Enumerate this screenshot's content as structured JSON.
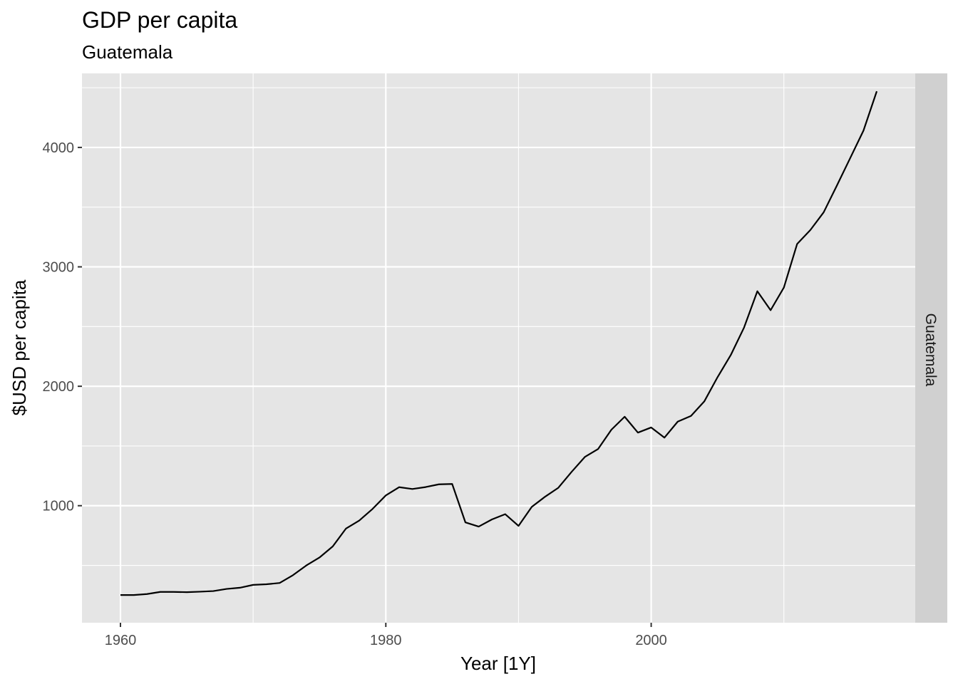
{
  "chart_data": {
    "type": "line",
    "title": "GDP per capita",
    "subtitle": "Guatemala",
    "xlabel": "Year [1Y]",
    "ylabel": "$USD per capita",
    "facet_label": "Guatemala",
    "xlim": [
      1957.1,
      2019.9
    ],
    "ylim": [
      20,
      4620
    ],
    "x_ticks": [
      1960,
      1980,
      2000
    ],
    "x_minor_ticks": [
      1970,
      1990,
      2010
    ],
    "y_ticks": [
      1000,
      2000,
      3000,
      4000
    ],
    "y_minor_ticks": [
      500,
      1500,
      2500,
      3500,
      4500
    ],
    "x_tick_labels": [
      "1960",
      "1980",
      "2000"
    ],
    "y_tick_labels": [
      "1000",
      "2000",
      "3000",
      "4000"
    ],
    "grid": true,
    "colors": {
      "panel_bg": "#e5e5e5",
      "strip_bg": "#d0d0d0",
      "grid": "#ffffff",
      "line": "#000000"
    },
    "series": [
      {
        "x": [
          1960,
          1961,
          1962,
          1963,
          1964,
          1965,
          1966,
          1967,
          1968,
          1969,
          1970,
          1971,
          1972,
          1973,
          1974,
          1975,
          1976,
          1977,
          1978,
          1979,
          1980,
          1981,
          1982,
          1983,
          1984,
          1985,
          1986,
          1987,
          1988,
          1989,
          1990,
          1991,
          1992,
          1993,
          1994,
          1995,
          1996,
          1997,
          1998,
          1999,
          2000,
          2001,
          2002,
          2003,
          2004,
          2005,
          2006,
          2007,
          2008,
          2009,
          2010,
          2011,
          2012,
          2013,
          2014,
          2015,
          2016,
          2017
        ],
        "values": [
          252,
          252,
          260,
          278,
          278,
          276,
          280,
          285,
          303,
          313,
          337,
          342,
          353,
          418,
          499,
          566,
          659,
          809,
          876,
          973,
          1086,
          1155,
          1140,
          1156,
          1179,
          1182,
          860,
          825,
          885,
          929,
          831,
          990,
          1075,
          1150,
          1283,
          1408,
          1475,
          1636,
          1745,
          1612,
          1655,
          1570,
          1704,
          1752,
          1873,
          2076,
          2262,
          2492,
          2796,
          2637,
          2827,
          3192,
          3309,
          3457,
          3682,
          3911,
          4141,
          4470
        ]
      }
    ]
  }
}
